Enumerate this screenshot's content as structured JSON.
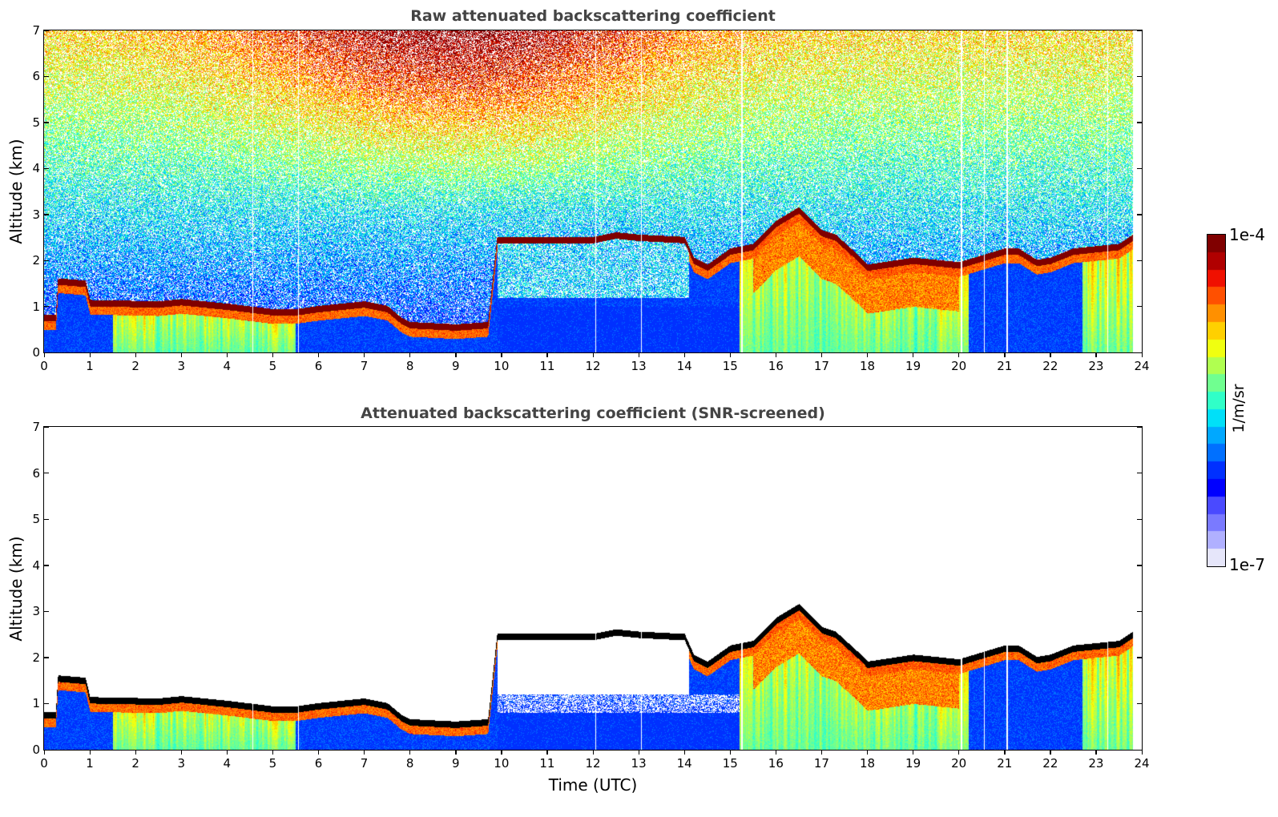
{
  "chart_data": [
    {
      "type": "heatmap",
      "title": "Raw attenuated backscattering coefficient",
      "xlabel": "",
      "ylabel": "Altitude (km)",
      "xlim": [
        0,
        24
      ],
      "ylim": [
        0,
        7
      ],
      "xticks": [
        "0",
        "1",
        "2",
        "3",
        "4",
        "5",
        "6",
        "7",
        "8",
        "9",
        "10",
        "11",
        "12",
        "13",
        "14",
        "15",
        "16",
        "17",
        "18",
        "19",
        "20",
        "21",
        "22",
        "23",
        "24"
      ],
      "yticks": [
        "0",
        "1",
        "2",
        "3",
        "4",
        "5",
        "6",
        "7"
      ],
      "data_end_hour": 23.8,
      "screened": false,
      "layer_top_km": {
        "time": [
          0,
          0.25,
          0.3,
          0.9,
          1.0,
          2.5,
          3.0,
          4.0,
          5.0,
          5.5,
          6.0,
          7.0,
          7.5,
          7.8,
          8.0,
          9.0,
          9.7,
          9.9,
          10.0,
          11.0,
          12.0,
          12.5,
          13.0,
          14.0,
          14.2,
          14.5,
          15.0,
          15.5,
          16.0,
          16.5,
          17.0,
          17.3,
          17.8,
          18.0,
          19.0,
          20.0,
          20.5,
          21.0,
          21.3,
          21.7,
          22.0,
          22.5,
          23.0,
          23.5,
          23.8
        ],
        "km": [
          0.75,
          0.75,
          1.55,
          1.5,
          1.08,
          1.05,
          1.1,
          1.0,
          0.88,
          0.88,
          0.95,
          1.05,
          0.95,
          0.7,
          0.6,
          0.55,
          0.6,
          2.45,
          2.45,
          2.45,
          2.45,
          2.55,
          2.5,
          2.45,
          2.0,
          1.85,
          2.2,
          2.3,
          2.8,
          3.1,
          2.6,
          2.5,
          2.05,
          1.85,
          2.0,
          1.9,
          2.05,
          2.2,
          2.2,
          1.95,
          2.0,
          2.2,
          2.25,
          2.3,
          2.5
        ]
      },
      "vertical_gaps_hour": [
        4.55,
        5.55,
        12.05,
        13.05,
        15.25,
        20.05,
        20.55,
        21.05,
        23.25
      ]
    },
    {
      "type": "heatmap",
      "title": "Attenuated backscattering coefficient (SNR-screened)",
      "xlabel": "Time (UTC)",
      "ylabel": "Altitude (km)",
      "xlim": [
        0,
        24
      ],
      "ylim": [
        0,
        7
      ],
      "xticks": [
        "0",
        "1",
        "2",
        "3",
        "4",
        "5",
        "6",
        "7",
        "8",
        "9",
        "10",
        "11",
        "12",
        "13",
        "14",
        "15",
        "16",
        "17",
        "18",
        "19",
        "20",
        "21",
        "22",
        "23",
        "24"
      ],
      "yticks": [
        "0",
        "1",
        "2",
        "3",
        "4",
        "5",
        "6",
        "7"
      ],
      "data_end_hour": 23.8,
      "screened": true
    }
  ],
  "colorbar": {
    "label": "1/m/sr",
    "max_label": "1e-4",
    "min_label": "1e-7",
    "scale": "log",
    "range": [
      1e-07,
      0.0001
    ],
    "colormap": [
      "#e6e6fa",
      "#b0b0ff",
      "#7a7aff",
      "#4a4aff",
      "#0000ff",
      "#0030ff",
      "#0070ff",
      "#00a8ff",
      "#00e0f8",
      "#30ffc8",
      "#70ff90",
      "#b0ff50",
      "#f0ff10",
      "#ffd000",
      "#ff9000",
      "#ff5000",
      "#f01000",
      "#b00000",
      "#800000"
    ]
  }
}
